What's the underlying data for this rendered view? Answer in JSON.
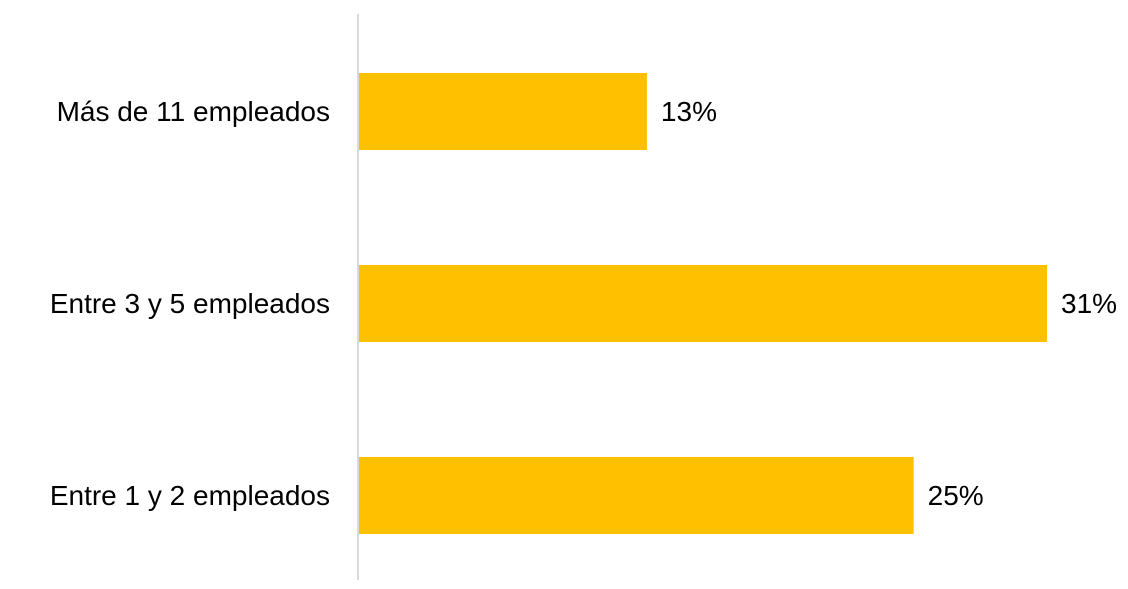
{
  "chart_data": {
    "type": "bar",
    "orientation": "horizontal",
    "categories": [
      "Más de 11 empleados",
      "Entre 3 y 5 empleados",
      "Entre 1 y 2 empleados"
    ],
    "values": [
      13,
      31,
      25
    ],
    "value_labels": [
      "13%",
      "31%",
      "25%"
    ],
    "title": "",
    "xlabel": "",
    "ylabel": "",
    "xlim": [
      0,
      31
    ],
    "grid": false,
    "legend": "none",
    "bar_color": "#FFC000",
    "axis_color": "#D9D9D9",
    "text_color": "#000000"
  }
}
